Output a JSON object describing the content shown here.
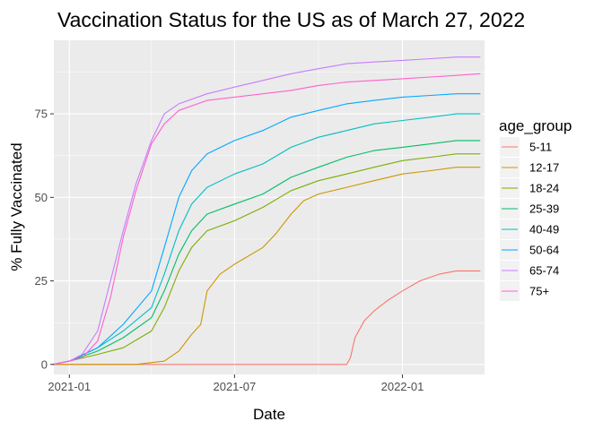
{
  "chart_data": {
    "type": "line",
    "title": "Vaccination Status for the US as of March 27, 2022",
    "xlabel": "Date",
    "ylabel": "% Fully Vaccinated",
    "x_range": [
      "2020-12-15",
      "2022-04-01"
    ],
    "ylim": [
      -3,
      97
    ],
    "x_ticks": [
      {
        "date": "2021-01-01",
        "label": "2021-01"
      },
      {
        "date": "2021-07-01",
        "label": "2021-07"
      },
      {
        "date": "2022-01-01",
        "label": "2022-01"
      }
    ],
    "y_ticks": [
      0,
      25,
      50,
      75
    ],
    "grid": true,
    "legend": {
      "title": "age_group",
      "position": "right"
    },
    "series": [
      {
        "name": "5-11",
        "color": "#F8766D",
        "points": [
          [
            "2020-12-14",
            0
          ],
          [
            "2021-11-01",
            0
          ],
          [
            "2021-11-05",
            2
          ],
          [
            "2021-11-10",
            8
          ],
          [
            "2021-11-20",
            13
          ],
          [
            "2021-12-01",
            16
          ],
          [
            "2021-12-15",
            19
          ],
          [
            "2022-01-01",
            22
          ],
          [
            "2022-01-20",
            25
          ],
          [
            "2022-02-10",
            27
          ],
          [
            "2022-03-01",
            28
          ],
          [
            "2022-03-27",
            28
          ]
        ]
      },
      {
        "name": "12-17",
        "color": "#CD9600",
        "points": [
          [
            "2020-12-14",
            0
          ],
          [
            "2021-03-15",
            0
          ],
          [
            "2021-04-15",
            1
          ],
          [
            "2021-05-01",
            4
          ],
          [
            "2021-05-15",
            9
          ],
          [
            "2021-05-25",
            12
          ],
          [
            "2021-06-01",
            22
          ],
          [
            "2021-06-15",
            27
          ],
          [
            "2021-07-01",
            30
          ],
          [
            "2021-08-01",
            35
          ],
          [
            "2021-08-15",
            39
          ],
          [
            "2021-09-01",
            45
          ],
          [
            "2021-09-15",
            49
          ],
          [
            "2021-10-01",
            51
          ],
          [
            "2021-11-01",
            53
          ],
          [
            "2021-12-01",
            55
          ],
          [
            "2022-01-01",
            57
          ],
          [
            "2022-02-01",
            58
          ],
          [
            "2022-03-01",
            59
          ],
          [
            "2022-03-27",
            59
          ]
        ]
      },
      {
        "name": "18-24",
        "color": "#7CAE00",
        "points": [
          [
            "2020-12-14",
            0
          ],
          [
            "2021-01-01",
            1
          ],
          [
            "2021-02-01",
            3
          ],
          [
            "2021-03-01",
            5
          ],
          [
            "2021-04-01",
            10
          ],
          [
            "2021-04-15",
            17
          ],
          [
            "2021-05-01",
            28
          ],
          [
            "2021-05-15",
            35
          ],
          [
            "2021-06-01",
            40
          ],
          [
            "2021-07-01",
            43
          ],
          [
            "2021-08-01",
            47
          ],
          [
            "2021-09-01",
            52
          ],
          [
            "2021-10-01",
            55
          ],
          [
            "2021-11-01",
            57
          ],
          [
            "2021-12-01",
            59
          ],
          [
            "2022-01-01",
            61
          ],
          [
            "2022-02-01",
            62
          ],
          [
            "2022-03-01",
            63
          ],
          [
            "2022-03-27",
            63
          ]
        ]
      },
      {
        "name": "25-39",
        "color": "#00BE67",
        "points": [
          [
            "2020-12-14",
            0
          ],
          [
            "2021-01-01",
            1
          ],
          [
            "2021-02-01",
            4
          ],
          [
            "2021-03-01",
            8
          ],
          [
            "2021-04-01",
            14
          ],
          [
            "2021-04-15",
            22
          ],
          [
            "2021-05-01",
            33
          ],
          [
            "2021-05-15",
            40
          ],
          [
            "2021-06-01",
            45
          ],
          [
            "2021-07-01",
            48
          ],
          [
            "2021-08-01",
            51
          ],
          [
            "2021-09-01",
            56
          ],
          [
            "2021-10-01",
            59
          ],
          [
            "2021-11-01",
            62
          ],
          [
            "2021-12-01",
            64
          ],
          [
            "2022-01-01",
            65
          ],
          [
            "2022-02-01",
            66
          ],
          [
            "2022-03-01",
            67
          ],
          [
            "2022-03-27",
            67
          ]
        ]
      },
      {
        "name": "40-49",
        "color": "#00BFC4",
        "points": [
          [
            "2020-12-14",
            0
          ],
          [
            "2021-01-01",
            1
          ],
          [
            "2021-02-01",
            5
          ],
          [
            "2021-03-01",
            10
          ],
          [
            "2021-04-01",
            17
          ],
          [
            "2021-04-15",
            27
          ],
          [
            "2021-05-01",
            40
          ],
          [
            "2021-05-15",
            48
          ],
          [
            "2021-06-01",
            53
          ],
          [
            "2021-07-01",
            57
          ],
          [
            "2021-08-01",
            60
          ],
          [
            "2021-09-01",
            65
          ],
          [
            "2021-10-01",
            68
          ],
          [
            "2021-11-01",
            70
          ],
          [
            "2021-12-01",
            72
          ],
          [
            "2022-01-01",
            73
          ],
          [
            "2022-02-01",
            74
          ],
          [
            "2022-03-01",
            75
          ],
          [
            "2022-03-27",
            75
          ]
        ]
      },
      {
        "name": "50-64",
        "color": "#00A9FF",
        "points": [
          [
            "2020-12-14",
            0
          ],
          [
            "2021-01-01",
            1
          ],
          [
            "2021-02-01",
            5
          ],
          [
            "2021-03-01",
            12
          ],
          [
            "2021-04-01",
            22
          ],
          [
            "2021-04-15",
            35
          ],
          [
            "2021-05-01",
            50
          ],
          [
            "2021-05-15",
            58
          ],
          [
            "2021-06-01",
            63
          ],
          [
            "2021-07-01",
            67
          ],
          [
            "2021-08-01",
            70
          ],
          [
            "2021-09-01",
            74
          ],
          [
            "2021-10-01",
            76
          ],
          [
            "2021-11-01",
            78
          ],
          [
            "2021-12-01",
            79
          ],
          [
            "2022-01-01",
            80
          ],
          [
            "2022-02-01",
            80.5
          ],
          [
            "2022-03-01",
            81
          ],
          [
            "2022-03-27",
            81
          ]
        ]
      },
      {
        "name": "65-74",
        "color": "#C77CFF",
        "points": [
          [
            "2020-12-14",
            0
          ],
          [
            "2021-01-01",
            1
          ],
          [
            "2021-01-15",
            3
          ],
          [
            "2021-02-01",
            10
          ],
          [
            "2021-02-15",
            25
          ],
          [
            "2021-03-01",
            40
          ],
          [
            "2021-03-15",
            54
          ],
          [
            "2021-04-01",
            67
          ],
          [
            "2021-04-15",
            75
          ],
          [
            "2021-05-01",
            78
          ],
          [
            "2021-06-01",
            81
          ],
          [
            "2021-07-01",
            83
          ],
          [
            "2021-08-01",
            85
          ],
          [
            "2021-09-01",
            87
          ],
          [
            "2021-10-01",
            88.5
          ],
          [
            "2021-11-01",
            90
          ],
          [
            "2021-12-01",
            90.5
          ],
          [
            "2022-01-01",
            91
          ],
          [
            "2022-02-01",
            91.5
          ],
          [
            "2022-03-01",
            92
          ],
          [
            "2022-03-27",
            92
          ]
        ]
      },
      {
        "name": "75+",
        "color": "#FF61CC",
        "points": [
          [
            "2020-12-14",
            0
          ],
          [
            "2021-01-01",
            1
          ],
          [
            "2021-01-15",
            2
          ],
          [
            "2021-02-01",
            7
          ],
          [
            "2021-02-15",
            20
          ],
          [
            "2021-03-01",
            38
          ],
          [
            "2021-03-15",
            52
          ],
          [
            "2021-04-01",
            66
          ],
          [
            "2021-04-15",
            72
          ],
          [
            "2021-05-01",
            76
          ],
          [
            "2021-06-01",
            79
          ],
          [
            "2021-07-01",
            80
          ],
          [
            "2021-08-01",
            81
          ],
          [
            "2021-09-01",
            82
          ],
          [
            "2021-10-01",
            83.5
          ],
          [
            "2021-11-01",
            84.5
          ],
          [
            "2021-12-01",
            85
          ],
          [
            "2022-01-01",
            85.5
          ],
          [
            "2022-02-01",
            86
          ],
          [
            "2022-03-01",
            86.5
          ],
          [
            "2022-03-27",
            87
          ]
        ]
      }
    ]
  }
}
